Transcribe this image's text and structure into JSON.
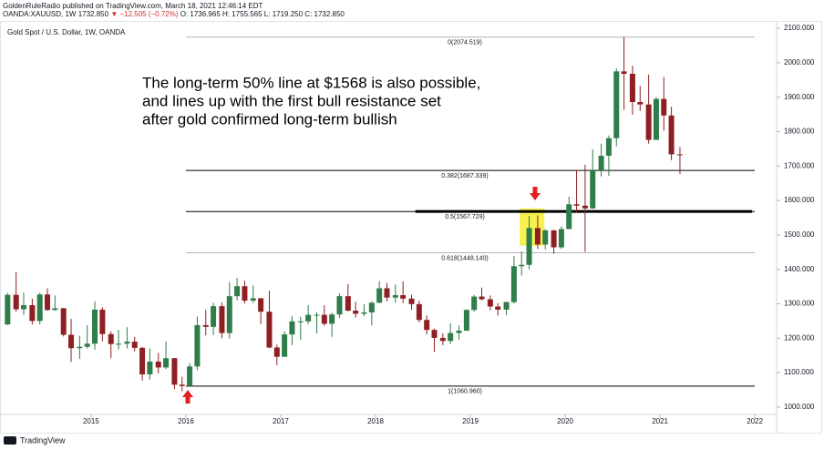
{
  "header": {
    "line1": "GoldenRuleRadio published on TradingView.com, March 18, 2021 12:46:14 EDT",
    "symbol": "OANDA:XAUUSD, 1W",
    "last": "1732.850",
    "change": "▼ −12.505 (−0.72%)",
    "ohlc": "O: 1736.965 H: 1755.565 L: 1719.250 C: 1732.850"
  },
  "footer": {
    "brand": "TradingView"
  },
  "chart_data": {
    "type": "candlestick",
    "title": "Gold Spot / U.S. Dollar, 1W, OANDA",
    "annotation": [
      "The long-term 50% line at $1568 is also possible,",
      "and lines up with the first bull resistance set",
      "after gold confirmed long-term bullish"
    ],
    "up_color": "#2f7d4a",
    "down_color": "#8e1f22",
    "xlim": [
      2014.04,
      2022.21
    ],
    "xticks": [
      2015,
      2016,
      2017,
      2018,
      2019,
      2020,
      2021,
      2022
    ],
    "ylim": [
      978.5,
      2118.8
    ],
    "yticks": [
      {
        "value": 1000,
        "label": "1000.000"
      },
      {
        "value": 1100,
        "label": "1100.000"
      },
      {
        "value": 1200,
        "label": "1200.000"
      },
      {
        "value": 1300,
        "label": "1300.000"
      },
      {
        "value": 1400,
        "label": "1400.000"
      },
      {
        "value": 1500,
        "label": "1500.000"
      },
      {
        "value": 1600,
        "label": "1600.000"
      },
      {
        "value": 1700,
        "label": "1700.000"
      },
      {
        "value": 1800,
        "label": "1800.000"
      },
      {
        "value": 1900,
        "label": "1900.000"
      },
      {
        "value": 2000,
        "label": "2000.000"
      },
      {
        "value": 2100,
        "label": "2100.000"
      }
    ],
    "levels": [
      {
        "value": 2074.519,
        "label": "0(2074.519)",
        "color": "#b2b5be",
        "from": 2016.0
      },
      {
        "value": 1687.339,
        "label": "0.382(1687.339)",
        "color": "#000000",
        "from": 2016.0
      },
      {
        "value": 1567.729,
        "label": "0.5(1567.729)",
        "color": "#000000",
        "from": 2016.0
      },
      {
        "value": 1448.14,
        "label": "0.618(1448.140)",
        "color": "#b2b5be",
        "from": 2016.0
      },
      {
        "value": 1060.96,
        "label": "1(1060.960)",
        "color": "#000000",
        "from": 2016.0
      }
    ],
    "highlight_line": {
      "value": 1568,
      "from": 2018.42,
      "to": 2021.97,
      "color": "#000000"
    },
    "highlight_box": {
      "x": [
        2019.52,
        2019.78
      ],
      "y": [
        1469,
        1577
      ],
      "color": "#f5f03c"
    },
    "series": {
      "x": [
        2014.12,
        2014.21,
        2014.29,
        2014.38,
        2014.46,
        2014.54,
        2014.62,
        2014.71,
        2014.79,
        2014.88,
        2014.96,
        2015.04,
        2015.12,
        2015.21,
        2015.29,
        2015.38,
        2015.46,
        2015.54,
        2015.62,
        2015.71,
        2015.79,
        2015.88,
        2015.96,
        2016.04,
        2016.12,
        2016.21,
        2016.29,
        2016.38,
        2016.46,
        2016.54,
        2016.62,
        2016.71,
        2016.79,
        2016.88,
        2016.96,
        2017.04,
        2017.12,
        2017.21,
        2017.29,
        2017.38,
        2017.46,
        2017.54,
        2017.62,
        2017.71,
        2017.79,
        2017.88,
        2017.96,
        2018.04,
        2018.12,
        2018.21,
        2018.29,
        2018.38,
        2018.46,
        2018.54,
        2018.62,
        2018.71,
        2018.79,
        2018.88,
        2018.96,
        2019.04,
        2019.12,
        2019.21,
        2019.29,
        2019.38,
        2019.46,
        2019.54,
        2019.62,
        2019.71,
        2019.79,
        2019.88,
        2019.96,
        2020.04,
        2020.12,
        2020.21,
        2020.29,
        2020.38,
        2020.46,
        2020.54,
        2020.62,
        2020.71,
        2020.79,
        2020.88,
        2020.96,
        2021.04,
        2021.12,
        2021.21
      ],
      "open": [
        1240,
        1326,
        1284,
        1296,
        1250,
        1327,
        1282,
        1287,
        1210,
        1171,
        1175,
        1184,
        1283,
        1212,
        1183,
        1184,
        1190,
        1172,
        1095,
        1132,
        1115,
        1142,
        1065,
        1061,
        1118,
        1238,
        1233,
        1293,
        1215,
        1322,
        1351,
        1309,
        1316,
        1277,
        1173,
        1146,
        1211,
        1249,
        1249,
        1268,
        1268,
        1242,
        1269,
        1322,
        1280,
        1271,
        1275,
        1303,
        1345,
        1318,
        1325,
        1315,
        1299,
        1253,
        1224,
        1201,
        1192,
        1215,
        1222,
        1282,
        1321,
        1313,
        1292,
        1283,
        1305,
        1409,
        1413,
        1520,
        1472,
        1513,
        1464,
        1517,
        1589,
        1585,
        1577,
        1687,
        1730,
        1781,
        1975,
        1968,
        1886,
        1879,
        1776,
        1895,
        1847,
        1734
      ],
      "high": [
        1332,
        1392,
        1332,
        1315,
        1332,
        1345,
        1324,
        1288,
        1256,
        1207,
        1238,
        1307,
        1290,
        1220,
        1224,
        1232,
        1204,
        1175,
        1170,
        1157,
        1191,
        1142,
        1088,
        1128,
        1263,
        1283,
        1303,
        1304,
        1363,
        1375,
        1367,
        1353,
        1317,
        1338,
        1181,
        1220,
        1264,
        1262,
        1296,
        1276,
        1296,
        1274,
        1331,
        1357,
        1306,
        1299,
        1307,
        1366,
        1361,
        1356,
        1365,
        1326,
        1309,
        1266,
        1228,
        1214,
        1243,
        1237,
        1284,
        1326,
        1347,
        1324,
        1302,
        1306,
        1439,
        1452,
        1555,
        1557,
        1517,
        1515,
        1525,
        1611,
        1689,
        1704,
        1748,
        1765,
        1789,
        1984,
        2075,
        1992,
        1933,
        1966,
        1900,
        1959,
        1872,
        1755
      ],
      "low": [
        1238,
        1277,
        1268,
        1240,
        1240,
        1280,
        1280,
        1205,
        1131,
        1140,
        1170,
        1167,
        1191,
        1142,
        1167,
        1170,
        1162,
        1077,
        1080,
        1098,
        1110,
        1052,
        1046,
        1061,
        1107,
        1208,
        1209,
        1200,
        1199,
        1310,
        1301,
        1302,
        1241,
        1171,
        1122,
        1146,
        1180,
        1195,
        1241,
        1214,
        1236,
        1204,
        1259,
        1278,
        1260,
        1264,
        1237,
        1302,
        1307,
        1303,
        1302,
        1282,
        1246,
        1211,
        1160,
        1180,
        1183,
        1196,
        1221,
        1277,
        1310,
        1281,
        1266,
        1267,
        1301,
        1382,
        1400,
        1459,
        1458,
        1445,
        1459,
        1517,
        1564,
        1451,
        1576,
        1670,
        1671,
        1757,
        1863,
        1849,
        1860,
        1765,
        1776,
        1802,
        1717,
        1677
      ],
      "close": [
        1326,
        1284,
        1296,
        1250,
        1327,
        1282,
        1287,
        1210,
        1171,
        1175,
        1184,
        1283,
        1212,
        1183,
        1184,
        1190,
        1172,
        1095,
        1132,
        1115,
        1142,
        1065,
        1061,
        1118,
        1238,
        1233,
        1293,
        1215,
        1322,
        1351,
        1309,
        1316,
        1277,
        1173,
        1146,
        1211,
        1249,
        1249,
        1268,
        1268,
        1242,
        1269,
        1322,
        1280,
        1271,
        1275,
        1303,
        1345,
        1318,
        1325,
        1315,
        1299,
        1253,
        1224,
        1201,
        1192,
        1215,
        1222,
        1282,
        1321,
        1313,
        1292,
        1283,
        1305,
        1409,
        1413,
        1520,
        1472,
        1513,
        1464,
        1517,
        1589,
        1585,
        1577,
        1687,
        1730,
        1781,
        1975,
        1968,
        1886,
        1879,
        1776,
        1895,
        1847,
        1734,
        1733
      ]
    }
  }
}
